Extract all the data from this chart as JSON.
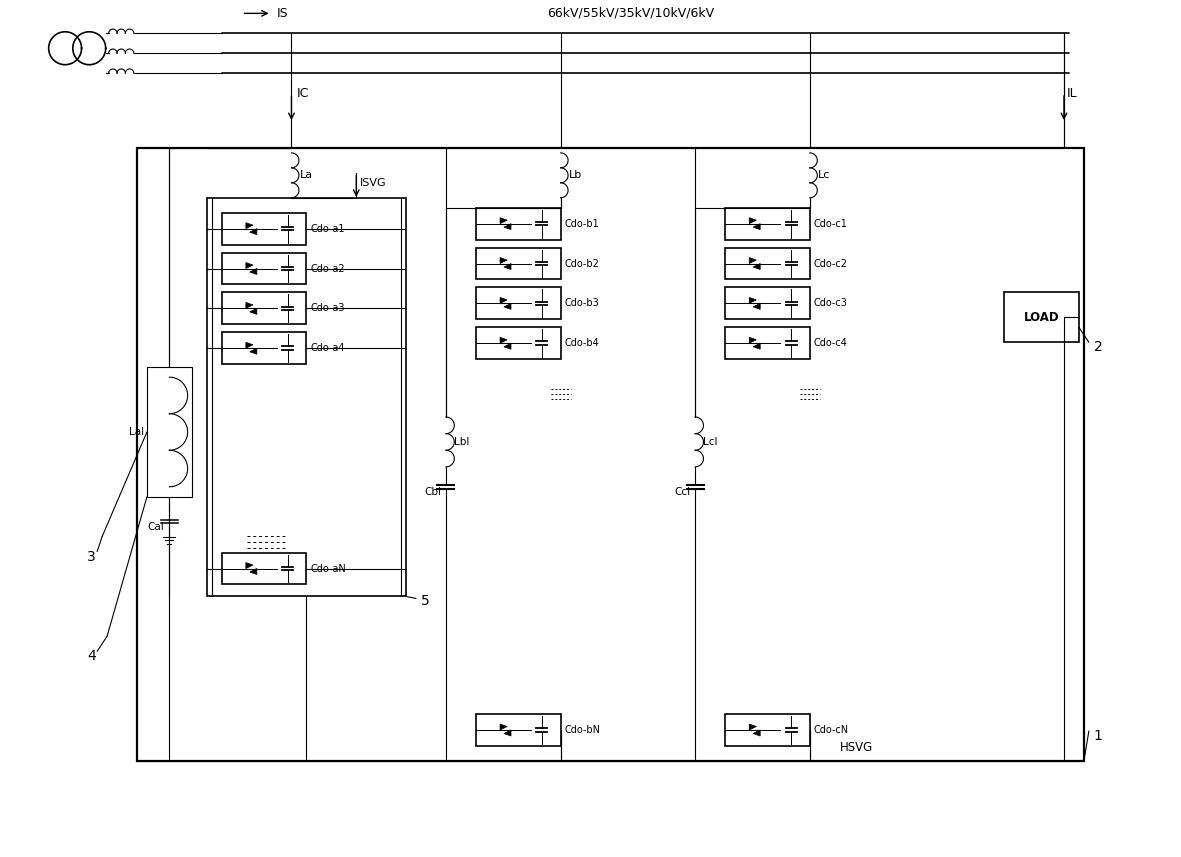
{
  "bg_color": "#ffffff",
  "fig_width": 11.81,
  "fig_height": 8.57,
  "voltage_label": "66kV/55kV/35kV/10kV/6kV",
  "IS_label": "IS",
  "IC_label": "IC",
  "ISVG_label": "ISVG",
  "IL_label": "IL",
  "HSVG_label": "HSVG",
  "LOAD_label": "LOAD",
  "La_label": "La",
  "Lb_label": "Lb",
  "Lc_label": "Lc",
  "Lal_label": "Lal",
  "Lbl_label": "Lbl",
  "Lcl_label": "Lcl",
  "Cal_label": "Cal",
  "Cbl_label": "Cbl",
  "Ccl_label": "Ccl",
  "phase_a_cells": [
    "Cdo-a1",
    "Cdo-a2",
    "Cdo-a3",
    "Cdo-a4",
    "Cdo-aN"
  ],
  "phase_b_cells": [
    "Cdo-b1",
    "Cdo-b2",
    "Cdo-b3",
    "Cdo-b4",
    "Cdo-bN"
  ],
  "phase_c_cells": [
    "Cdo-c1",
    "Cdo-c2",
    "Cdo-c3",
    "Cdo-c4",
    "Cdo-cN"
  ],
  "num_labels": [
    "1",
    "2",
    "3",
    "4",
    "5"
  ]
}
